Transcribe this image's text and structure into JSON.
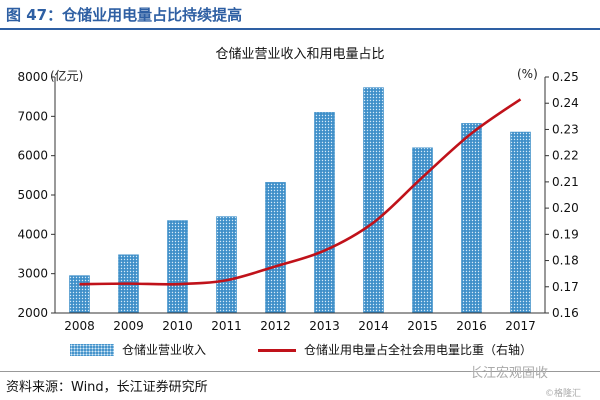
{
  "header": {
    "title": "图 47：仓储业用电量占比持续提高"
  },
  "chart_data": {
    "type": "bar",
    "title": "仓储业营业收入和用电量占比",
    "left_unit": "(亿元)",
    "right_unit": "(%)",
    "categories": [
      "2008",
      "2009",
      "2010",
      "2011",
      "2012",
      "2013",
      "2014",
      "2015",
      "2016",
      "2017"
    ],
    "y_left": {
      "min": 2000,
      "max": 8000,
      "step": 1000,
      "ticks": [
        "2000",
        "3000",
        "4000",
        "5000",
        "6000",
        "7000",
        "8000"
      ]
    },
    "y_right": {
      "min": 0.16,
      "max": 0.25,
      "step": 0.01,
      "ticks": [
        "0.16",
        "0.17",
        "0.18",
        "0.19",
        "0.20",
        "0.21",
        "0.22",
        "0.23",
        "0.24",
        "0.25"
      ]
    },
    "series": [
      {
        "name": "仓储业营业收入",
        "type": "bar",
        "axis": "left",
        "color": "#3f8fc9",
        "values": [
          2950,
          3480,
          4350,
          4450,
          5320,
          7100,
          7730,
          6200,
          6820,
          6600
        ]
      },
      {
        "name": "仓储业用电量占全社会用电量比重（右轴）",
        "type": "line",
        "axis": "right",
        "color": "#c0121a",
        "values": [
          0.171,
          0.1712,
          0.171,
          0.1725,
          0.1778,
          0.1838,
          0.1945,
          0.2118,
          0.2285,
          0.2415
        ]
      }
    ],
    "legend_position": "bottom",
    "grid": false
  },
  "footer": {
    "source": "资料来源：Wind，长江证券研究所",
    "watermark": "长江宏观固收",
    "watermark_sub": "©格隆汇"
  }
}
